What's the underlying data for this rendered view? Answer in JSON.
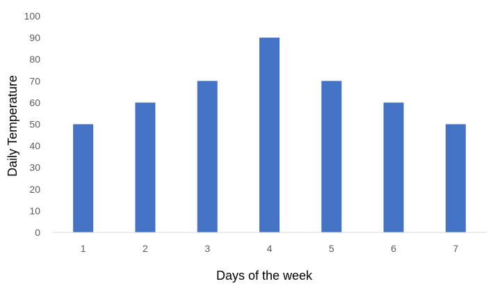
{
  "chart_data": {
    "type": "bar",
    "title": "",
    "xlabel": "Days of the week",
    "ylabel": "Daily Temperature",
    "categories": [
      "1",
      "2",
      "3",
      "4",
      "5",
      "6",
      "7"
    ],
    "values": [
      50,
      60,
      70,
      90,
      70,
      60,
      50
    ],
    "ylim": [
      0,
      100
    ],
    "yticks": [
      "0",
      "10",
      "20",
      "30",
      "40",
      "50",
      "60",
      "70",
      "80",
      "90",
      "100"
    ],
    "grid": false,
    "legend": "none",
    "bar_color": "#4472C4",
    "axis_color": "#D9D9D9"
  }
}
